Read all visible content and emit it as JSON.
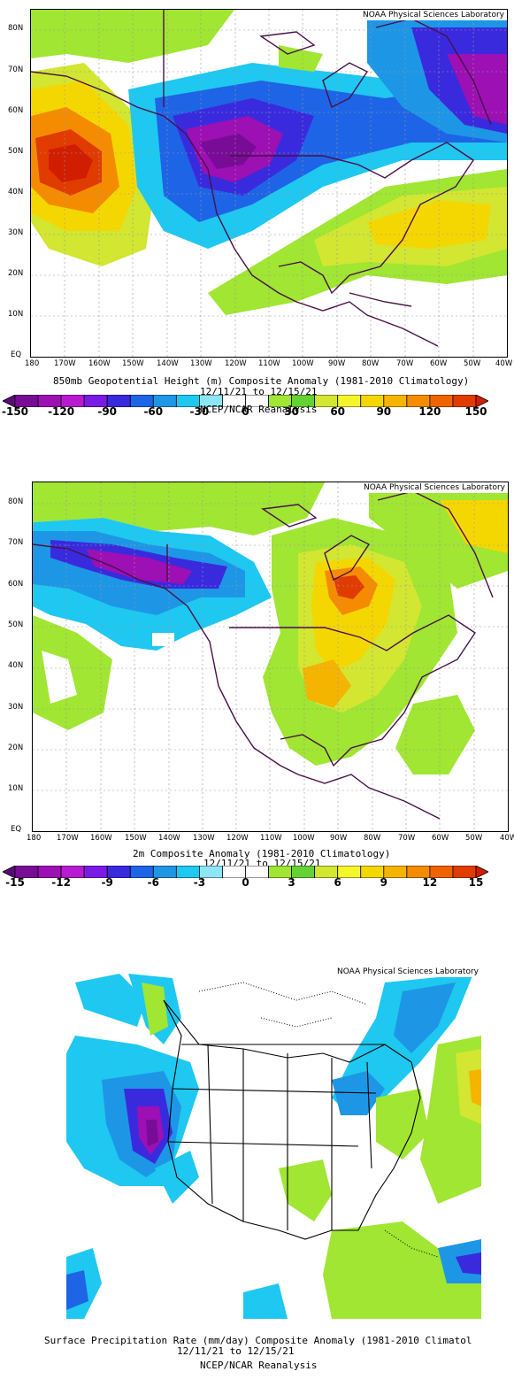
{
  "source_label": "NOAA Physical Sciences Laboratory",
  "lat_labels": [
    "80N",
    "70N",
    "60N",
    "50N",
    "40N",
    "30N",
    "20N",
    "10N",
    "EQ"
  ],
  "lon_labels": [
    "180",
    "170W",
    "160W",
    "150W",
    "140W",
    "130W",
    "120W",
    "110W",
    "100W",
    "90W",
    "80W",
    "70W",
    "60W",
    "50W",
    "40W"
  ],
  "panel1": {
    "title": "850mb Geopotential Height (m) Composite Anomaly (1981-2010 Climatology)",
    "dates": "12/11/21 to 12/15/21",
    "reanalysis": "NCEP/NCAR Reanalysis",
    "colorbar": {
      "ticks": [
        "-150",
        "-120",
        "-90",
        "-60",
        "-30",
        "0",
        "30",
        "60",
        "90",
        "120",
        "150"
      ],
      "colors": [
        "#5a0a78",
        "#780c96",
        "#9c10b4",
        "#b81ad2",
        "#7a1ae6",
        "#3a2ade",
        "#1e64e6",
        "#1e96e6",
        "#1ec8f0",
        "#8ce6f6",
        "#ffffff",
        "#ffffff",
        "#a0e632",
        "#64d232",
        "#d2e632",
        "#f5f52c",
        "#f5d700",
        "#f5b400",
        "#f58c00",
        "#f06400",
        "#e13c00",
        "#d21e00"
      ]
    }
  },
  "panel2": {
    "title": "2m Composite Anomaly (1981-2010 Climatology)",
    "dates": "12/11/21 to 12/15/21",
    "colorbar": {
      "ticks": [
        "-15",
        "-12",
        "-9",
        "-6",
        "-3",
        "0",
        "3",
        "6",
        "9",
        "12",
        "15"
      ],
      "colors": [
        "#5a0a78",
        "#780c96",
        "#9c10b4",
        "#b81ad2",
        "#7a1ae6",
        "#3a2ade",
        "#1e64e6",
        "#1e96e6",
        "#1ec8f0",
        "#8ce6f6",
        "#ffffff",
        "#ffffff",
        "#a0e632",
        "#64d232",
        "#d2e632",
        "#f5f52c",
        "#f5d700",
        "#f5b400",
        "#f58c00",
        "#f06400",
        "#e13c00",
        "#d21e00"
      ]
    }
  },
  "panel3": {
    "title": "Surface Precipitation Rate (mm/day) Composite Anomaly (1981-2010 Climatol",
    "dates": "12/11/21 to 12/15/21",
    "reanalysis": "NCEP/NCAR Reanalysis"
  }
}
